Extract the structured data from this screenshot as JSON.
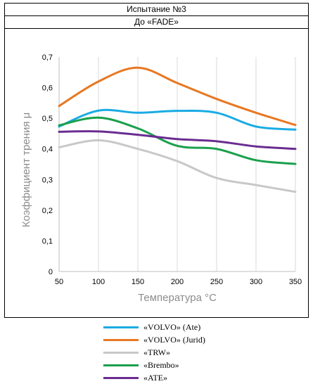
{
  "header": {
    "line1": "Испытание №3",
    "line2": "До «FADE»"
  },
  "chart_data": {
    "type": "line",
    "title": "",
    "xlabel": "Температура °C",
    "ylabel": "Коэффициент трения μ",
    "x": [
      50,
      100,
      150,
      200,
      250,
      300,
      350
    ],
    "x_ticks": [
      "50",
      "100",
      "150",
      "200",
      "250",
      "300",
      "350"
    ],
    "y_ticks": [
      "0",
      "0,1",
      "0,2",
      "0,3",
      "0,4",
      "0,5",
      "0,6",
      "0,7"
    ],
    "xlim": [
      50,
      350
    ],
    "ylim": [
      0,
      0.7
    ],
    "grid": "vertical",
    "legend_position": "bottom",
    "series": [
      {
        "name": "«VOLVO» (Ate)",
        "color": "#1aabe3",
        "values": [
          0.473,
          0.525,
          0.518,
          0.524,
          0.518,
          0.473,
          0.463
        ]
      },
      {
        "name": "«VOLVO» (Jurid)",
        "color": "#e87722",
        "values": [
          0.54,
          0.62,
          0.665,
          0.615,
          0.563,
          0.518,
          0.478
        ]
      },
      {
        "name": "«TRW»",
        "color": "#c8c8c8",
        "values": [
          0.405,
          0.428,
          0.4,
          0.36,
          0.305,
          0.282,
          0.26
        ]
      },
      {
        "name": "«Brembo»",
        "color": "#1aa04c",
        "values": [
          0.477,
          0.502,
          0.467,
          0.41,
          0.4,
          0.363,
          0.351
        ]
      },
      {
        "name": "«ATE»",
        "color": "#6a2c91",
        "values": [
          0.456,
          0.457,
          0.446,
          0.432,
          0.425,
          0.408,
          0.4
        ]
      }
    ]
  }
}
